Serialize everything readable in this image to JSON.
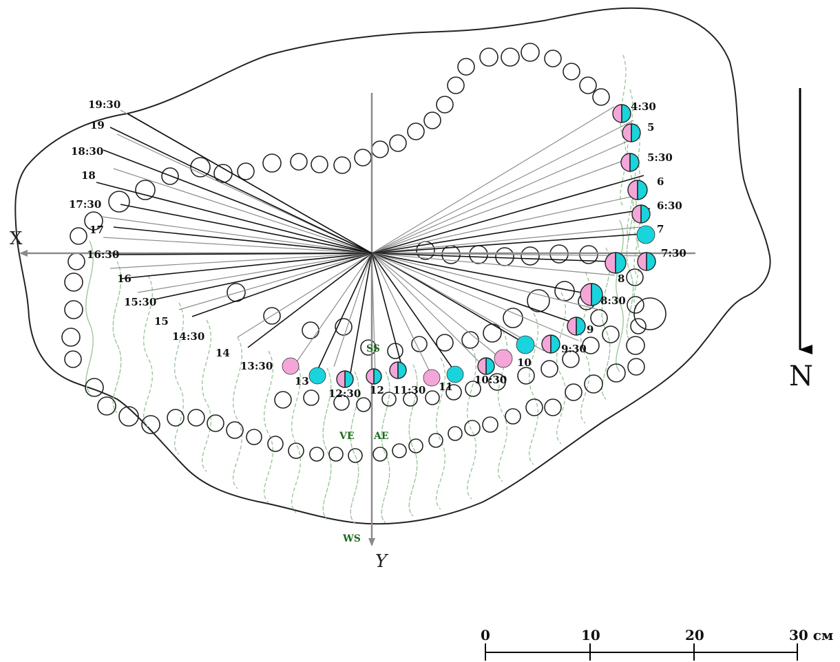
{
  "axes": {
    "x_label": "X",
    "y_label": "Y"
  },
  "north_label": "N",
  "season_labels": {
    "summer_solstice": "SS",
    "vernal_equinox": "VE",
    "autumnal_equinox": "AE",
    "winter_solstice": "WS"
  },
  "scale": {
    "ticks": [
      "0",
      "10",
      "20",
      "30 см"
    ]
  },
  "hour_labels_right": [
    "4:30",
    "5",
    "5:30",
    "6",
    "6:30",
    "7",
    "7:30",
    "8",
    "8:30",
    "9",
    "9:30",
    "10",
    "10:30",
    "11",
    "11:30",
    "12",
    "12:30",
    "13"
  ],
  "hour_labels_left": [
    "13:30",
    "14",
    "14:30",
    "15",
    "15:30",
    "16",
    "16:30",
    "17",
    "17:30",
    "18",
    "18:30",
    "19",
    "19:30"
  ],
  "marker_colors": {
    "pink": "#f4a6d8",
    "cyan": "#19d4dc"
  }
}
